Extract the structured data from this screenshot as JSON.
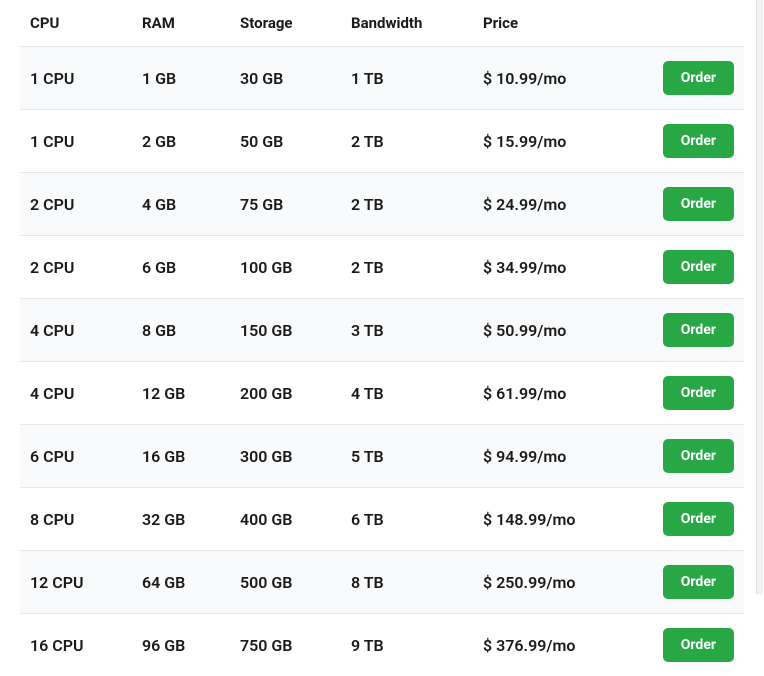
{
  "pricing_table": {
    "columns": [
      {
        "key": "cpu",
        "label": "CPU"
      },
      {
        "key": "ram",
        "label": "RAM"
      },
      {
        "key": "storage",
        "label": "Storage"
      },
      {
        "key": "bandwidth",
        "label": "Bandwidth"
      },
      {
        "key": "price",
        "label": "Price"
      }
    ],
    "order_label": "Order",
    "rows": [
      {
        "cpu": "1 CPU",
        "ram": "1 GB",
        "storage": "30 GB",
        "bandwidth": "1 TB",
        "price": "$ 10.99/mo"
      },
      {
        "cpu": "1 CPU",
        "ram": "2 GB",
        "storage": "50 GB",
        "bandwidth": "2 TB",
        "price": "$ 15.99/mo"
      },
      {
        "cpu": "2 CPU",
        "ram": "4 GB",
        "storage": "75 GB",
        "bandwidth": "2 TB",
        "price": "$ 24.99/mo"
      },
      {
        "cpu": "2 CPU",
        "ram": "6 GB",
        "storage": "100 GB",
        "bandwidth": "2 TB",
        "price": "$ 34.99/mo"
      },
      {
        "cpu": "4 CPU",
        "ram": "8 GB",
        "storage": "150 GB",
        "bandwidth": "3 TB",
        "price": "$ 50.99/mo"
      },
      {
        "cpu": "4 CPU",
        "ram": "12 GB",
        "storage": "200 GB",
        "bandwidth": "4 TB",
        "price": "$ 61.99/mo"
      },
      {
        "cpu": "6 CPU",
        "ram": "16 GB",
        "storage": "300 GB",
        "bandwidth": "5 TB",
        "price": "$ 94.99/mo"
      },
      {
        "cpu": "8 CPU",
        "ram": "32 GB",
        "storage": "400 GB",
        "bandwidth": "6 TB",
        "price": "$ 148.99/mo"
      },
      {
        "cpu": "12 CPU",
        "ram": "64 GB",
        "storage": "500 GB",
        "bandwidth": "8 TB",
        "price": "$ 250.99/mo"
      },
      {
        "cpu": "16 CPU",
        "ram": "96 GB",
        "storage": "750 GB",
        "bandwidth": "9 TB",
        "price": "$ 376.99/mo"
      }
    ],
    "styling": {
      "row_odd_bg": "#f9fafb",
      "row_even_bg": "#ffffff",
      "border_color": "#e5e7eb",
      "text_color": "#1a1a1a",
      "header_font_size": 15,
      "cell_font_size": 16,
      "order_btn_bg": "#28a745",
      "order_btn_color": "#ffffff",
      "order_btn_font_size": 14,
      "order_btn_radius": 5
    }
  }
}
